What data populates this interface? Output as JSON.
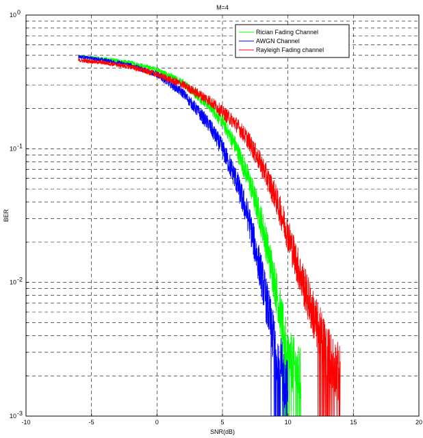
{
  "chart_data": {
    "type": "line",
    "title": "M=4",
    "xlabel": "SNR(dB)",
    "ylabel": "BER",
    "xlim": [
      -10,
      20
    ],
    "ylim": [
      0.001,
      1
    ],
    "yscale": "log",
    "grid": true,
    "legend_position": "top-right",
    "x_ticks": [
      "-10",
      "-5",
      "0",
      "5",
      "10",
      "15",
      "20"
    ],
    "y_ticks": [
      {
        "base": "10",
        "exp": "0"
      },
      {
        "base": "10",
        "exp": "-1"
      },
      {
        "base": "10",
        "exp": "-2"
      },
      {
        "base": "10",
        "exp": "-3"
      }
    ],
    "series": [
      {
        "name": "Rician  Fading Channel",
        "color": "#00ff00",
        "x": [
          -6,
          -4,
          -2,
          0,
          2,
          4,
          5,
          6,
          7,
          8,
          9,
          10,
          11
        ],
        "y": [
          0.49,
          0.47,
          0.44,
          0.39,
          0.31,
          0.21,
          0.16,
          0.105,
          0.06,
          0.028,
          0.01,
          0.0028,
          0.0019
        ]
      },
      {
        "name": "AWGN  Channel",
        "color": "#0000ff",
        "x": [
          -6,
          -4,
          -2,
          0,
          2,
          4,
          5,
          6,
          7,
          8,
          9,
          10
        ],
        "y": [
          0.49,
          0.46,
          0.42,
          0.36,
          0.26,
          0.15,
          0.1,
          0.06,
          0.03,
          0.011,
          0.0034,
          0.0015
        ]
      },
      {
        "name": "Rayleigh Fading channel",
        "color": "#ff0000",
        "x": [
          -6,
          -4,
          -2,
          0,
          2,
          4,
          6,
          7,
          8,
          9,
          10,
          11,
          12,
          13,
          14
        ],
        "y": [
          0.46,
          0.44,
          0.41,
          0.36,
          0.3,
          0.23,
          0.155,
          0.115,
          0.075,
          0.045,
          0.023,
          0.011,
          0.0055,
          0.003,
          0.002
        ]
      }
    ]
  }
}
